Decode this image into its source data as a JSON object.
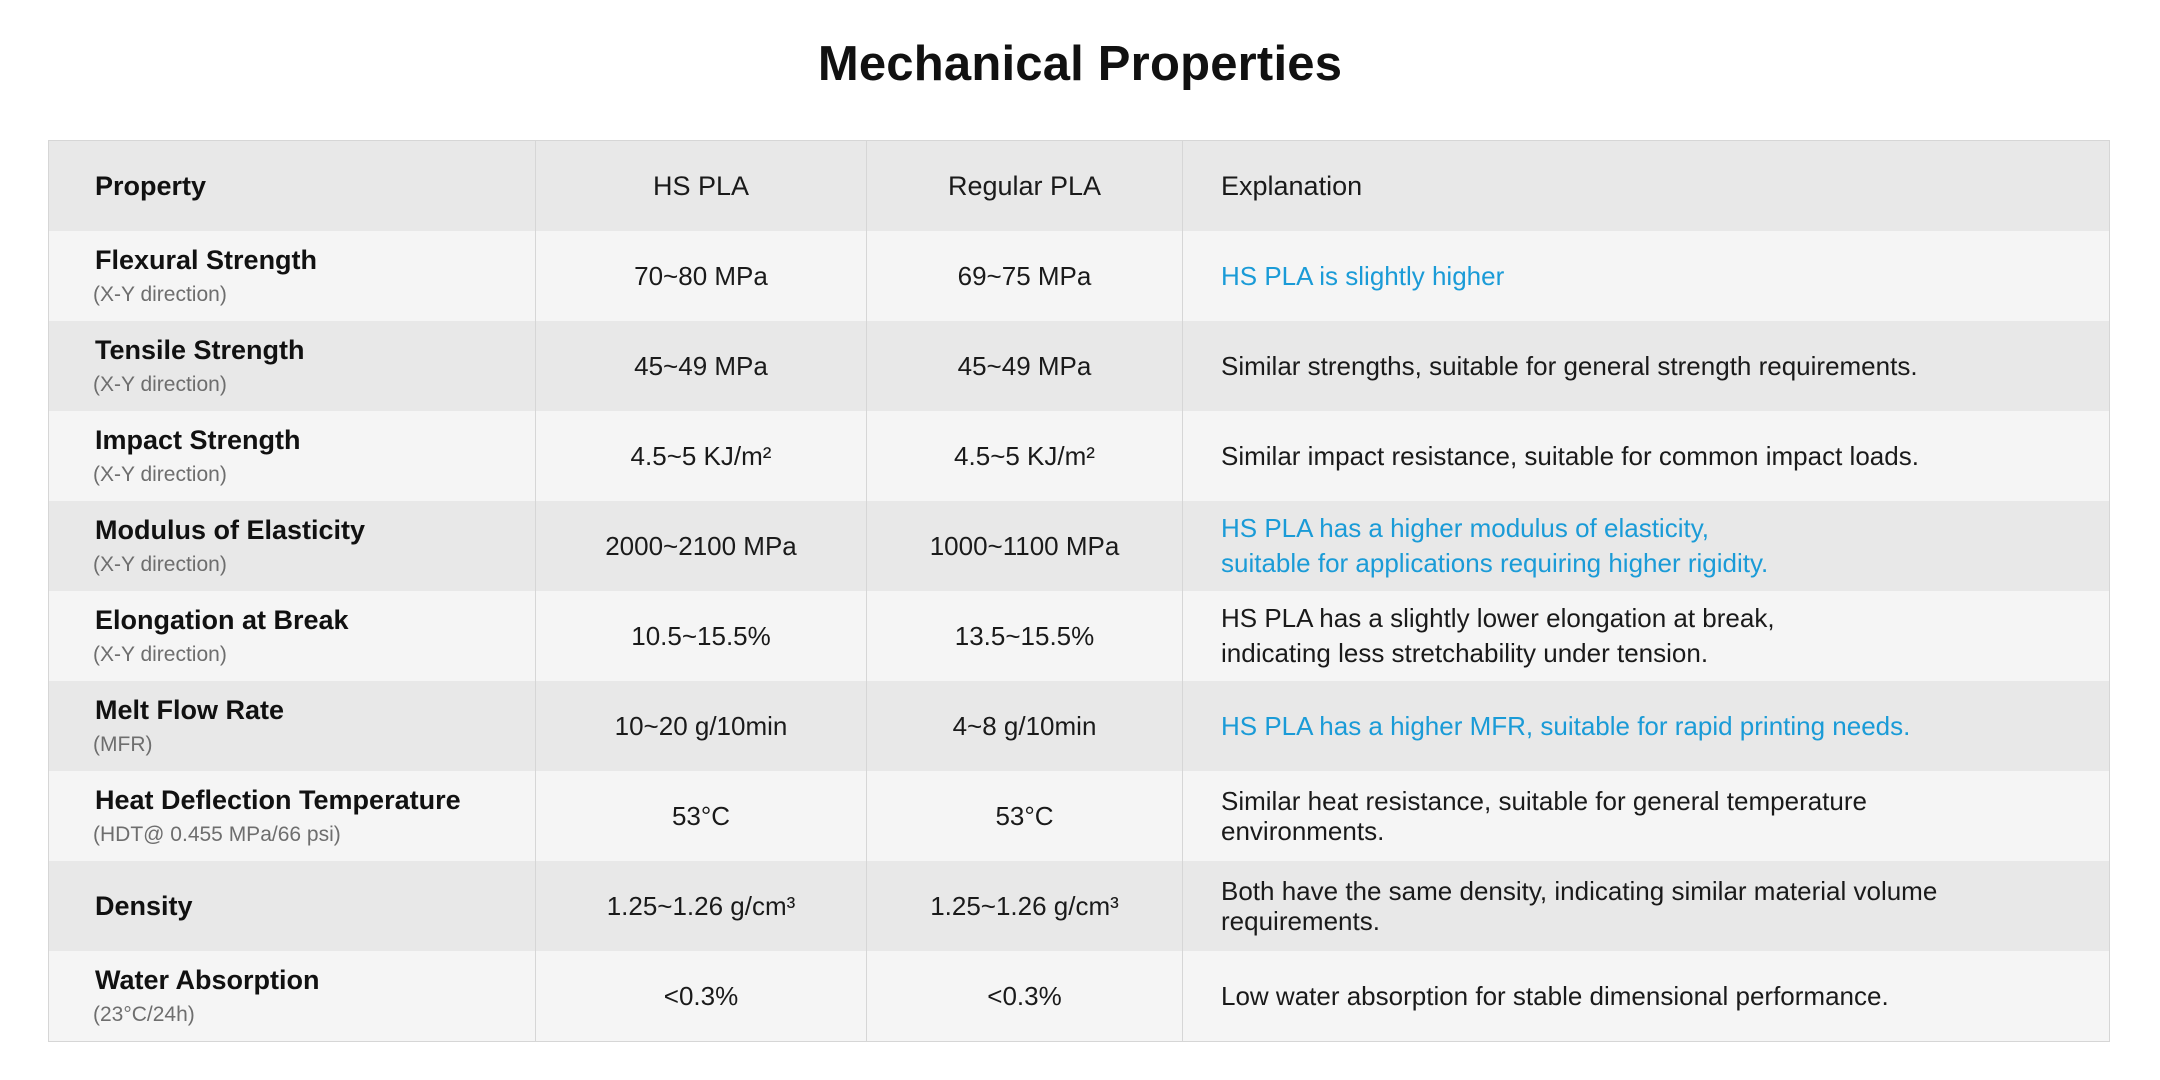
{
  "title": "Mechanical Properties",
  "colors": {
    "accent": "#1a9bd7",
    "row_light": "#f5f5f5",
    "row_dark": "#e8e8e8",
    "subtext": "#6e6e6e"
  },
  "table": {
    "headers": [
      "Property",
      "HS PLA",
      "Regular PLA",
      "Explanation"
    ],
    "rows": [
      {
        "property": "Flexural Strength",
        "sub": "(X-Y direction)",
        "hs_pla": "70~80 MPa",
        "regular_pla": "69~75 MPa",
        "explanation": [
          "HS PLA is slightly higher"
        ],
        "highlight": true
      },
      {
        "property": "Tensile Strength",
        "sub": "(X-Y direction)",
        "hs_pla": "45~49 MPa",
        "regular_pla": "45~49 MPa",
        "explanation": [
          "Similar strengths, suitable for general strength requirements."
        ],
        "highlight": false
      },
      {
        "property": "Impact Strength",
        "sub": "(X-Y direction)",
        "hs_pla": "4.5~5 KJ/m²",
        "regular_pla": "4.5~5 KJ/m²",
        "explanation": [
          "Similar impact resistance, suitable for common impact loads."
        ],
        "highlight": false
      },
      {
        "property": "Modulus of Elasticity",
        "sub": "(X-Y direction)",
        "hs_pla": "2000~2100 MPa",
        "regular_pla": "1000~1100 MPa",
        "explanation": [
          "HS PLA has a higher modulus of elasticity,",
          "suitable for applications requiring higher rigidity."
        ],
        "highlight": true
      },
      {
        "property": "Elongation at Break",
        "sub": "(X-Y direction)",
        "hs_pla": "10.5~15.5%",
        "regular_pla": "13.5~15.5%",
        "explanation": [
          "HS PLA has a slightly lower elongation at break,",
          "indicating less stretchability under tension."
        ],
        "highlight": false
      },
      {
        "property": "Melt Flow Rate",
        "sub": "(MFR)",
        "hs_pla": "10~20 g/10min",
        "regular_pla": "4~8 g/10min",
        "explanation": [
          "HS PLA has a higher MFR, suitable for rapid printing needs."
        ],
        "highlight": true
      },
      {
        "property": "Heat Deflection Temperature",
        "sub": "(HDT@ 0.455 MPa/66 psi)",
        "hs_pla": "53°C",
        "regular_pla": "53°C",
        "explanation": [
          "Similar heat resistance, suitable for general temperature",
          "environments."
        ],
        "highlight": false
      },
      {
        "property": "Density",
        "sub": "",
        "hs_pla": "1.25~1.26 g/cm³",
        "regular_pla": "1.25~1.26 g/cm³",
        "explanation": [
          "Both have the same density, indicating similar material volume",
          "requirements."
        ],
        "highlight": false
      },
      {
        "property": "Water Absorption",
        "sub": "(23°C/24h)",
        "hs_pla": "<0.3%",
        "regular_pla": "<0.3%",
        "explanation": [
          "Low water absorption for stable dimensional performance."
        ],
        "highlight": false
      }
    ]
  }
}
